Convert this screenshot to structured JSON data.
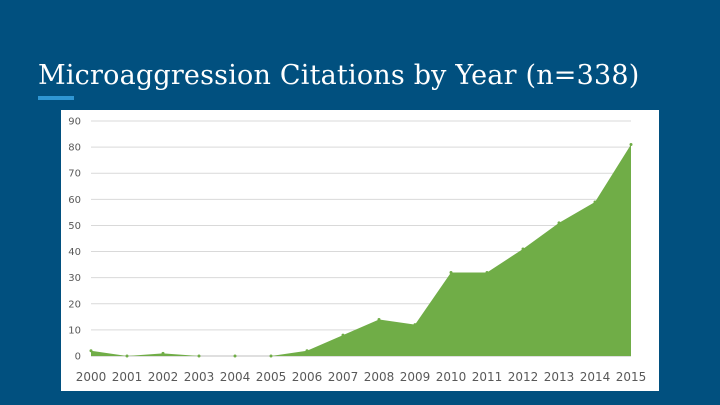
{
  "slide": {
    "title": "Microaggression Citations by Year  (n=338)",
    "accent_color": "#2f96d3",
    "background_color": "#01507f"
  },
  "chart_data": {
    "type": "area",
    "title": "",
    "xlabel": "",
    "ylabel": "",
    "x": [
      "2000",
      "2001",
      "2002",
      "2003",
      "2004",
      "2005",
      "2006",
      "2007",
      "2008",
      "2009",
      "2010",
      "2011",
      "2012",
      "2013",
      "2014",
      "2015"
    ],
    "series": [
      {
        "values": [
          2,
          0,
          1,
          0,
          0,
          0,
          2,
          8,
          14,
          12,
          32,
          32,
          41,
          51,
          59,
          81
        ],
        "color": "#70ad47"
      }
    ],
    "ylim": [
      0,
      90
    ],
    "yticks": [
      "0",
      "10",
      "20",
      "30",
      "40",
      "50",
      "60",
      "70",
      "80",
      "90"
    ],
    "grid": true,
    "legend": "none"
  }
}
